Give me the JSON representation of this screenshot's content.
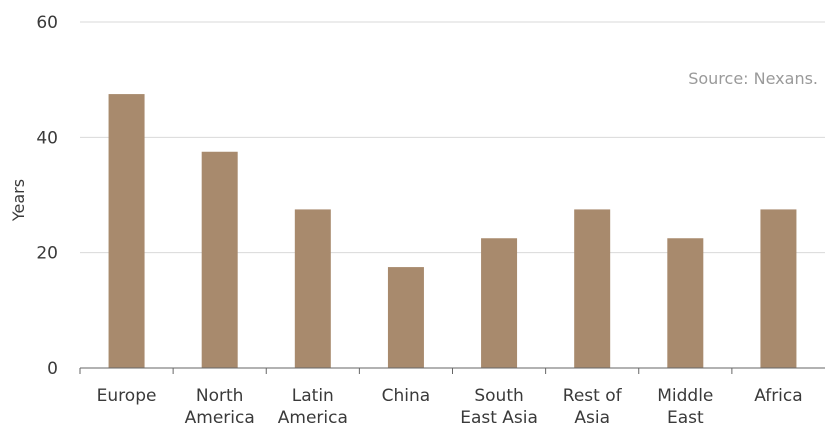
{
  "chart_data": {
    "type": "bar",
    "categories": [
      "Europe",
      "North America",
      "Latin America",
      "China",
      "South East Asia",
      "Rest of Asia",
      "Middle East",
      "Africa"
    ],
    "category_lines": [
      [
        "Europe"
      ],
      [
        "North",
        "America"
      ],
      [
        "Latin",
        "America"
      ],
      [
        "China"
      ],
      [
        "South",
        "East Asia"
      ],
      [
        "Rest of",
        "Asia"
      ],
      [
        "Middle",
        "East"
      ],
      [
        "Africa"
      ]
    ],
    "values": [
      47.5,
      37.5,
      27.5,
      17.5,
      22.5,
      27.5,
      22.5,
      27.5
    ],
    "ylabel": "Years",
    "ylim": [
      0,
      60
    ],
    "yticks": [
      0,
      20,
      40,
      60
    ],
    "grid": true,
    "bar_color": "#a88a6d",
    "source_note": "Source: Nexans."
  }
}
